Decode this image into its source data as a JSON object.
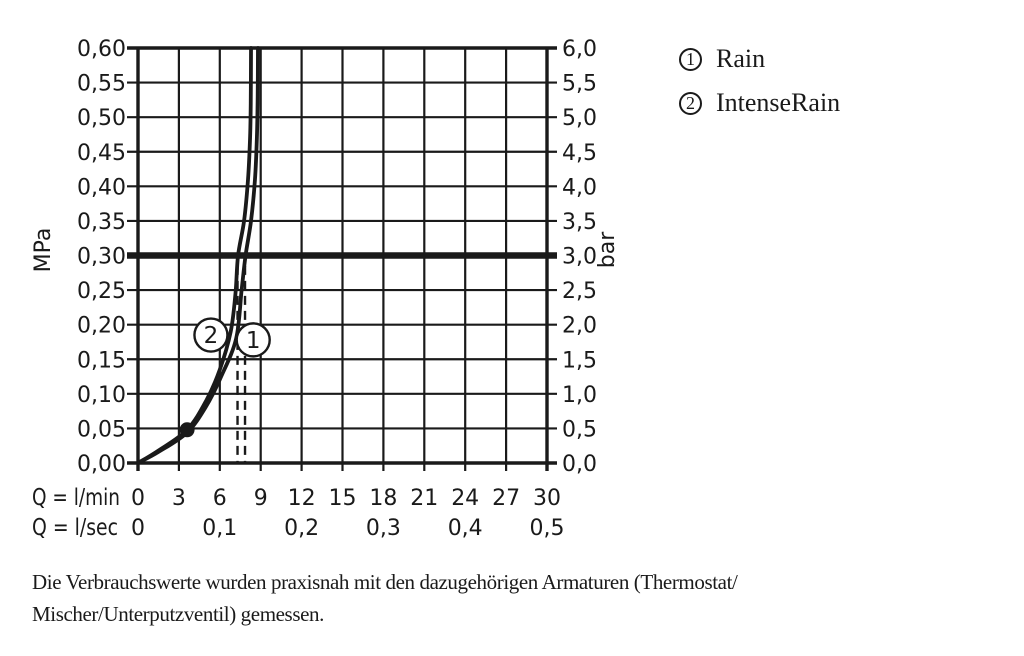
{
  "figure": {
    "background": "#ffffff",
    "ink": "#1a1a1a"
  },
  "chart_data": {
    "type": "line",
    "x_axis": {
      "row1_label": "Q = l/min",
      "row2_label": "Q = l/sec",
      "min": 0,
      "max": 30,
      "ticks_lmin": [
        "0",
        "3",
        "6",
        "9",
        "12",
        "15",
        "18",
        "21",
        "24",
        "27",
        "30"
      ],
      "ticks_lmin_values": [
        0,
        3,
        6,
        9,
        12,
        15,
        18,
        21,
        24,
        27,
        30
      ],
      "ticks_lsec": [
        "0",
        "0,1",
        "0,2",
        "0,3",
        "0,4",
        "0,5"
      ],
      "ticks_lsec_positions_lmin": [
        0,
        6,
        12,
        18,
        24,
        30
      ]
    },
    "y_axis_left": {
      "label": "MPa",
      "min": 0,
      "max": 0.6,
      "step": 0.05,
      "ticks": [
        "0,60",
        "0,55",
        "0,50",
        "0,45",
        "0,40",
        "0,35",
        "0,30",
        "0,25",
        "0,20",
        "0,15",
        "0,10",
        "0,05",
        "0,00"
      ]
    },
    "y_axis_right": {
      "label": "bar",
      "min": 0,
      "max": 6,
      "step": 0.5,
      "ticks": [
        "6,0",
        "5,5",
        "5,0",
        "4,5",
        "4,0",
        "3,5",
        "3,0",
        "2,5",
        "2,0",
        "1,5",
        "1,0",
        "0,5",
        "0,0"
      ]
    },
    "reference_line_mpa": 0.3,
    "series": [
      {
        "id": "2",
        "name": "IntenseRain",
        "points_q_mpa": [
          [
            0,
            0
          ],
          [
            1.5,
            0.018
          ],
          [
            3.6,
            0.048
          ],
          [
            5,
            0.09
          ],
          [
            6,
            0.135
          ],
          [
            6.8,
            0.19
          ],
          [
            7.15,
            0.245
          ],
          [
            7.34,
            0.3
          ],
          [
            7.78,
            0.35
          ],
          [
            8.07,
            0.41
          ],
          [
            8.22,
            0.47
          ],
          [
            8.27,
            0.52
          ],
          [
            8.29,
            0.6
          ]
        ],
        "label_circle": {
          "q": 5.35,
          "mpa": 0.185
        },
        "flow_at_3bar_lmin": 7.3
      },
      {
        "id": "1",
        "name": "Rain",
        "points_q_mpa": [
          [
            0,
            0
          ],
          [
            1.5,
            0.016
          ],
          [
            3.6,
            0.044
          ],
          [
            5,
            0.082
          ],
          [
            6.1,
            0.125
          ],
          [
            7.2,
            0.18
          ],
          [
            7.6,
            0.25
          ],
          [
            7.89,
            0.3
          ],
          [
            8.29,
            0.35
          ],
          [
            8.58,
            0.41
          ],
          [
            8.72,
            0.47
          ],
          [
            8.78,
            0.53
          ],
          [
            8.8,
            0.6
          ]
        ],
        "label_circle": {
          "q": 8.45,
          "mpa": 0.178
        },
        "flow_at_3bar_lmin": 7.85
      }
    ],
    "marker_dot": {
      "q": 3.6,
      "mpa": 0.048
    },
    "dashed_guides": {
      "q_values": [
        7.3,
        7.85
      ],
      "mpa_top": 0.285
    }
  },
  "legend": {
    "items": [
      {
        "symbol": "1",
        "label": "Rain"
      },
      {
        "symbol": "2",
        "label": "IntenseRain"
      }
    ]
  },
  "caption": {
    "line1": "Die Verbrauchswerte wurden praxisnah mit den dazugehörigen Armaturen (Thermostat/",
    "line2": "Mischer/Unterputzventil) gemessen."
  }
}
